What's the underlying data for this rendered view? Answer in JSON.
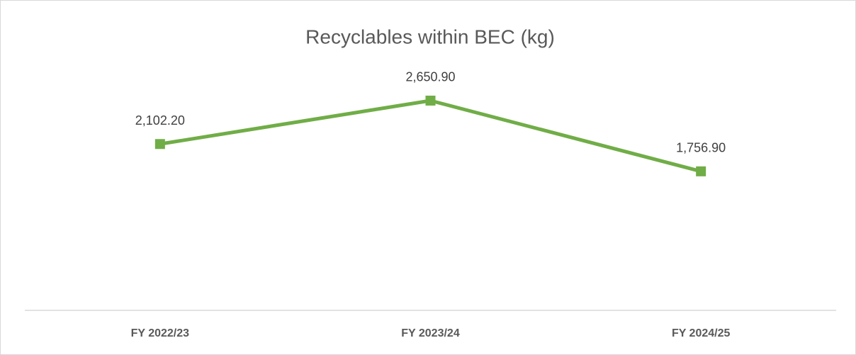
{
  "chart_data": {
    "type": "line",
    "title": "Recyclables within BEC (kg)",
    "categories": [
      "FY 2022/23",
      "FY 2023/24",
      "FY 2024/25"
    ],
    "series": [
      {
        "name": "Recyclables",
        "color": "#70ad47",
        "values": [
          2102.2,
          2650.9,
          1756.9
        ],
        "value_labels": [
          "2,102.20",
          "2,650.90",
          "1,756.90"
        ]
      }
    ],
    "ylim": [
      0,
      3000
    ]
  }
}
